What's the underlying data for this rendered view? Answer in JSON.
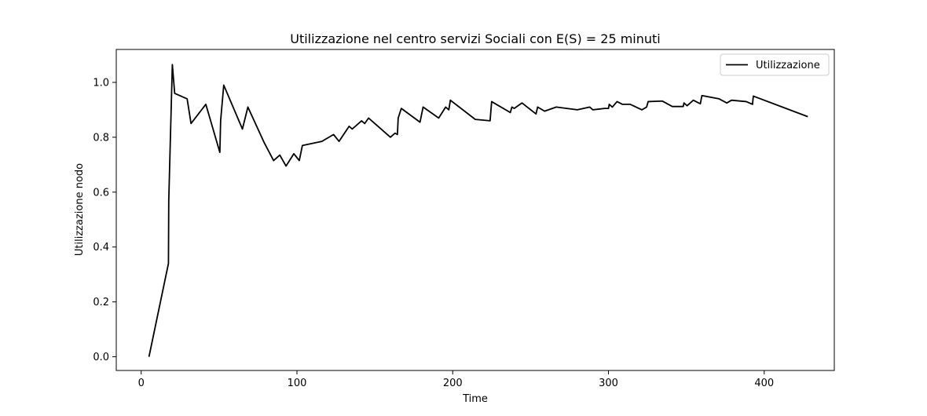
{
  "chart_data": {
    "type": "line",
    "title": "Utilizzazione nel centro servizi Sociali con E(S) = 25 minuti",
    "xlabel": "Time",
    "ylabel": "Utilizzazione nodo",
    "xlim": [
      -16,
      445
    ],
    "ylim": [
      -0.05,
      1.12
    ],
    "xticks": [
      0,
      100,
      200,
      300,
      400
    ],
    "xtick_labels": [
      "0",
      "100",
      "200",
      "300",
      "400"
    ],
    "yticks": [
      0.0,
      0.2,
      0.4,
      0.6,
      0.8,
      1.0
    ],
    "ytick_labels": [
      "0.0",
      "0.2",
      "0.4",
      "0.6",
      "0.8",
      "1.0"
    ],
    "grid": false,
    "legend": {
      "position": "top-right",
      "entries": [
        "Utilizzazione"
      ]
    },
    "colors": {
      "line": "#000000"
    },
    "series": [
      {
        "name": "Utilizzazione",
        "x": [
          5,
          17.5,
          17.7,
          20,
          21.5,
          29.5,
          32,
          41.5,
          50.5,
          51,
          53,
          65,
          68.5,
          79,
          85,
          89,
          93,
          98,
          101.5,
          103.5,
          116,
          123.5,
          127,
          133.5,
          135.5,
          141.5,
          143.5,
          146,
          160,
          163,
          164.5,
          165,
          167,
          179,
          181,
          191,
          195.5,
          197.5,
          198.5,
          214.5,
          224,
          225,
          237,
          238,
          239.5,
          244.5,
          253.5,
          254.5,
          259,
          266.5,
          280,
          288,
          290,
          297.5,
          300,
          300.5,
          302.5,
          305.5,
          309,
          314,
          321.5,
          324.5,
          325.5,
          334.5,
          341,
          348,
          348.5,
          350.5,
          354.5,
          359,
          360,
          371,
          376,
          379,
          388.5,
          392.5,
          393,
          428
        ],
        "y": [
          0.0,
          0.34,
          0.57,
          1.065,
          0.96,
          0.94,
          0.85,
          0.92,
          0.745,
          0.86,
          0.99,
          0.83,
          0.91,
          0.78,
          0.715,
          0.735,
          0.695,
          0.74,
          0.715,
          0.77,
          0.785,
          0.81,
          0.785,
          0.84,
          0.83,
          0.86,
          0.85,
          0.87,
          0.8,
          0.815,
          0.81,
          0.87,
          0.905,
          0.855,
          0.91,
          0.87,
          0.91,
          0.9,
          0.935,
          0.865,
          0.86,
          0.93,
          0.89,
          0.91,
          0.905,
          0.925,
          0.885,
          0.91,
          0.895,
          0.91,
          0.9,
          0.91,
          0.9,
          0.905,
          0.905,
          0.92,
          0.91,
          0.93,
          0.92,
          0.92,
          0.9,
          0.91,
          0.93,
          0.932,
          0.912,
          0.912,
          0.925,
          0.915,
          0.935,
          0.922,
          0.952,
          0.94,
          0.925,
          0.935,
          0.93,
          0.92,
          0.95,
          0.875
        ]
      }
    ]
  }
}
